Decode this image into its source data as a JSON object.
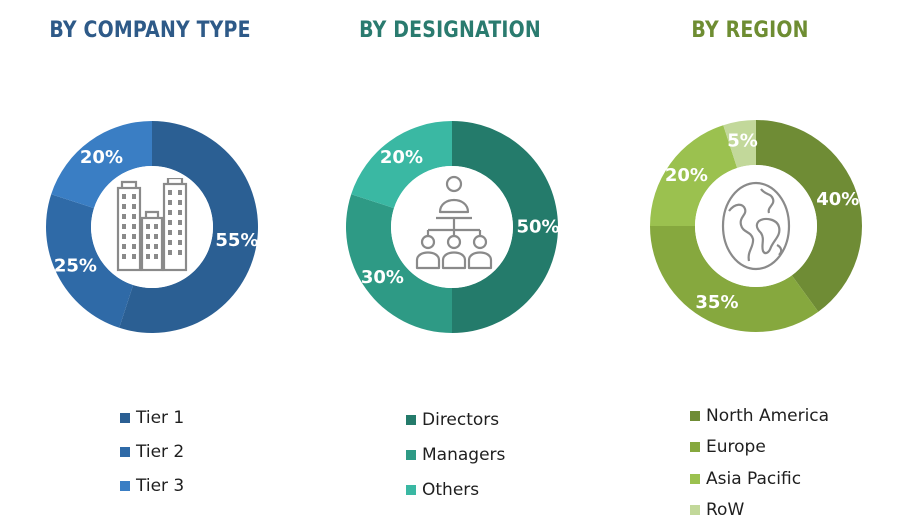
{
  "colors": {
    "company_title": "#2e5a88",
    "designation_title": "#2a7b6f",
    "region_title": "#6e8d32",
    "icon": "#8a8a8a"
  },
  "chart_data": [
    {
      "type": "pie",
      "title": "BY COMPANY TYPE",
      "icon": "buildings-icon",
      "categories": [
        "Tier 1",
        "Tier 2",
        "Tier 3"
      ],
      "values": [
        55,
        25,
        20
      ],
      "value_labels": [
        "55%",
        "25%",
        "20%"
      ],
      "colors": [
        "#2b5f93",
        "#2f6aa7",
        "#3a7ec4"
      ],
      "legend_position": "bottom"
    },
    {
      "type": "pie",
      "title": "BY DESIGNATION",
      "icon": "meeting-people-icon",
      "categories": [
        "Directors",
        "Managers",
        "Others"
      ],
      "values": [
        50,
        30,
        20
      ],
      "value_labels": [
        "50%",
        "30%",
        "20%"
      ],
      "colors": [
        "#247b6b",
        "#2e9a85",
        "#3ab8a3"
      ],
      "legend_position": "bottom"
    },
    {
      "type": "pie",
      "title": "BY REGION",
      "icon": "globe-icon",
      "categories": [
        "North America",
        "Europe",
        "Asia Pacific",
        "RoW"
      ],
      "values": [
        40,
        35,
        20,
        5
      ],
      "value_labels": [
        "40%",
        "35%",
        "20%",
        "5%"
      ],
      "colors": [
        "#6f8c35",
        "#86a83e",
        "#9bc14f",
        "#c2d89a"
      ],
      "legend_position": "bottom"
    }
  ]
}
